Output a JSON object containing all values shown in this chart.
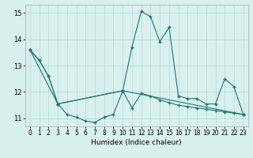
{
  "title": "",
  "xlabel": "Humidex (Indice chaleur)",
  "bg_color": "#d8f0ee",
  "grid_color": "#b8d8d4",
  "line_color": "#1a7a6e",
  "xlim": [
    -0.5,
    23.5
  ],
  "ylim": [
    10.7,
    15.3
  ],
  "xticks": [
    0,
    1,
    2,
    3,
    4,
    5,
    6,
    7,
    8,
    9,
    10,
    11,
    12,
    13,
    14,
    15,
    16,
    17,
    18,
    19,
    20,
    21,
    22,
    23
  ],
  "yticks": [
    11,
    12,
    13,
    14,
    15
  ],
  "series": [
    {
      "x": [
        0,
        1,
        2,
        3,
        10,
        11,
        12,
        13,
        14,
        15,
        16,
        17,
        18,
        19,
        20,
        21,
        22,
        23
      ],
      "y": [
        13.6,
        13.2,
        12.6,
        11.55,
        12.05,
        13.7,
        15.05,
        14.85,
        13.9,
        14.45,
        11.85,
        11.75,
        11.75,
        11.55,
        11.55,
        12.5,
        12.2,
        11.15
      ]
    },
    {
      "x": [
        0,
        1,
        2,
        3,
        4,
        5,
        6,
        7,
        8,
        9,
        10,
        11,
        12,
        13,
        14,
        15,
        16,
        17,
        18,
        19,
        20,
        21,
        22,
        23
      ],
      "y": [
        13.6,
        13.2,
        12.6,
        11.55,
        11.15,
        11.05,
        10.9,
        10.85,
        11.05,
        11.15,
        12.05,
        11.4,
        11.95,
        11.85,
        11.7,
        11.6,
        11.5,
        11.45,
        11.4,
        11.35,
        11.3,
        11.25,
        11.2,
        11.15
      ]
    },
    {
      "x": [
        0,
        3,
        10,
        23
      ],
      "y": [
        13.6,
        11.55,
        12.05,
        11.15
      ]
    }
  ]
}
